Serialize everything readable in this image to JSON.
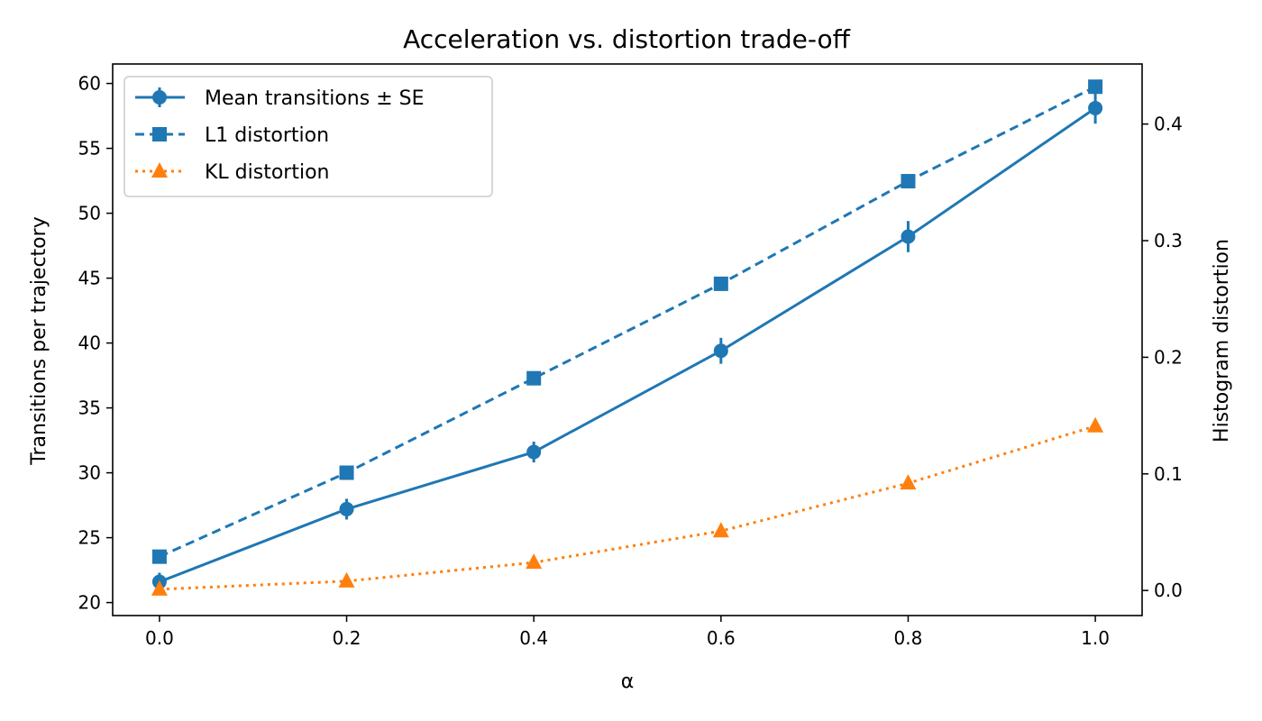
{
  "chart_data": {
    "type": "line",
    "title": "Acceleration vs. distortion trade-off",
    "xlabel": "α",
    "ylabel": "Transitions per trajectory",
    "ylabel_right": "Histogram distortion",
    "x": [
      0.0,
      0.2,
      0.4,
      0.6,
      0.8,
      1.0
    ],
    "x_ticks": [
      "0.0",
      "0.2",
      "0.4",
      "0.6",
      "0.8",
      "1.0"
    ],
    "xlim": [
      -0.05,
      1.05
    ],
    "ylim": [
      19.0,
      61.5
    ],
    "y_ticks": [
      "20",
      "25",
      "30",
      "35",
      "40",
      "45",
      "50",
      "55",
      "60"
    ],
    "y2lim": [
      -0.0215,
      0.4515
    ],
    "y2_ticks": [
      "0.0",
      "0.1",
      "0.2",
      "0.3",
      "0.4"
    ],
    "legend_position": "top-left",
    "grid": false,
    "series": [
      {
        "name": "Mean transitions ± SE",
        "axis": "left",
        "values": [
          21.6,
          27.2,
          31.6,
          39.4,
          48.2,
          58.1
        ],
        "errors": [
          0.7,
          0.8,
          0.8,
          1.0,
          1.2,
          1.2
        ],
        "color": "#1f77b4",
        "style": "solid",
        "marker": "circle"
      },
      {
        "name": "L1 distortion",
        "axis": "right",
        "values": [
          0.029,
          0.101,
          0.182,
          0.263,
          0.351,
          0.432
        ],
        "color": "#1f77b4",
        "style": "dashed",
        "marker": "square"
      },
      {
        "name": "KL distortion",
        "axis": "right",
        "values": [
          0.001,
          0.008,
          0.024,
          0.051,
          0.092,
          0.141
        ],
        "color": "#ff7f0e",
        "style": "dotted",
        "marker": "triangle"
      }
    ]
  }
}
